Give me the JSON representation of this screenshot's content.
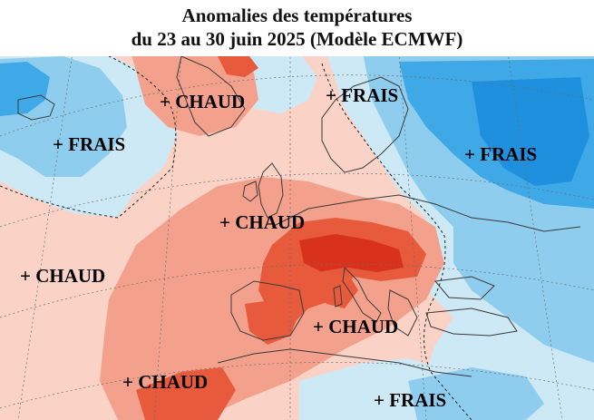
{
  "title": {
    "line1": "Anomalies des températures",
    "line2": "du 23 au 30 juin 2025 (Modèle ECMWF)"
  },
  "map": {
    "region": "Europe et Atlantique Nord",
    "colors": {
      "warm_light": "#fbd3c6",
      "warm_medium": "#f3a18c",
      "warm_strong": "#e85a3c",
      "warm_extreme": "#d8321d",
      "cool_light": "#cde9f6",
      "cool_medium": "#8fcdee",
      "cool_strong": "#3ea9e6",
      "cool_extreme": "#1f90de",
      "coastline": "#3a3a3a"
    },
    "labels": [
      {
        "id": "chaud-north-atlantic",
        "text": "+ CHAUD",
        "type": "warm"
      },
      {
        "id": "frais-scandinavia",
        "text": "+ FRAIS",
        "type": "cool"
      },
      {
        "id": "frais-west-atlantic",
        "text": "+ FRAIS",
        "type": "cool"
      },
      {
        "id": "frais-russia",
        "text": "+ FRAIS",
        "type": "cool"
      },
      {
        "id": "chaud-uk-france",
        "text": "+ CHAUD",
        "type": "warm"
      },
      {
        "id": "chaud-atlantic",
        "text": "+ CHAUD",
        "type": "warm"
      },
      {
        "id": "chaud-mediterranean",
        "text": "+ CHAUD",
        "type": "warm"
      },
      {
        "id": "chaud-south-atlantic",
        "text": "+ CHAUD",
        "type": "warm"
      },
      {
        "id": "frais-east-med",
        "text": "+ FRAIS",
        "type": "cool"
      }
    ]
  }
}
